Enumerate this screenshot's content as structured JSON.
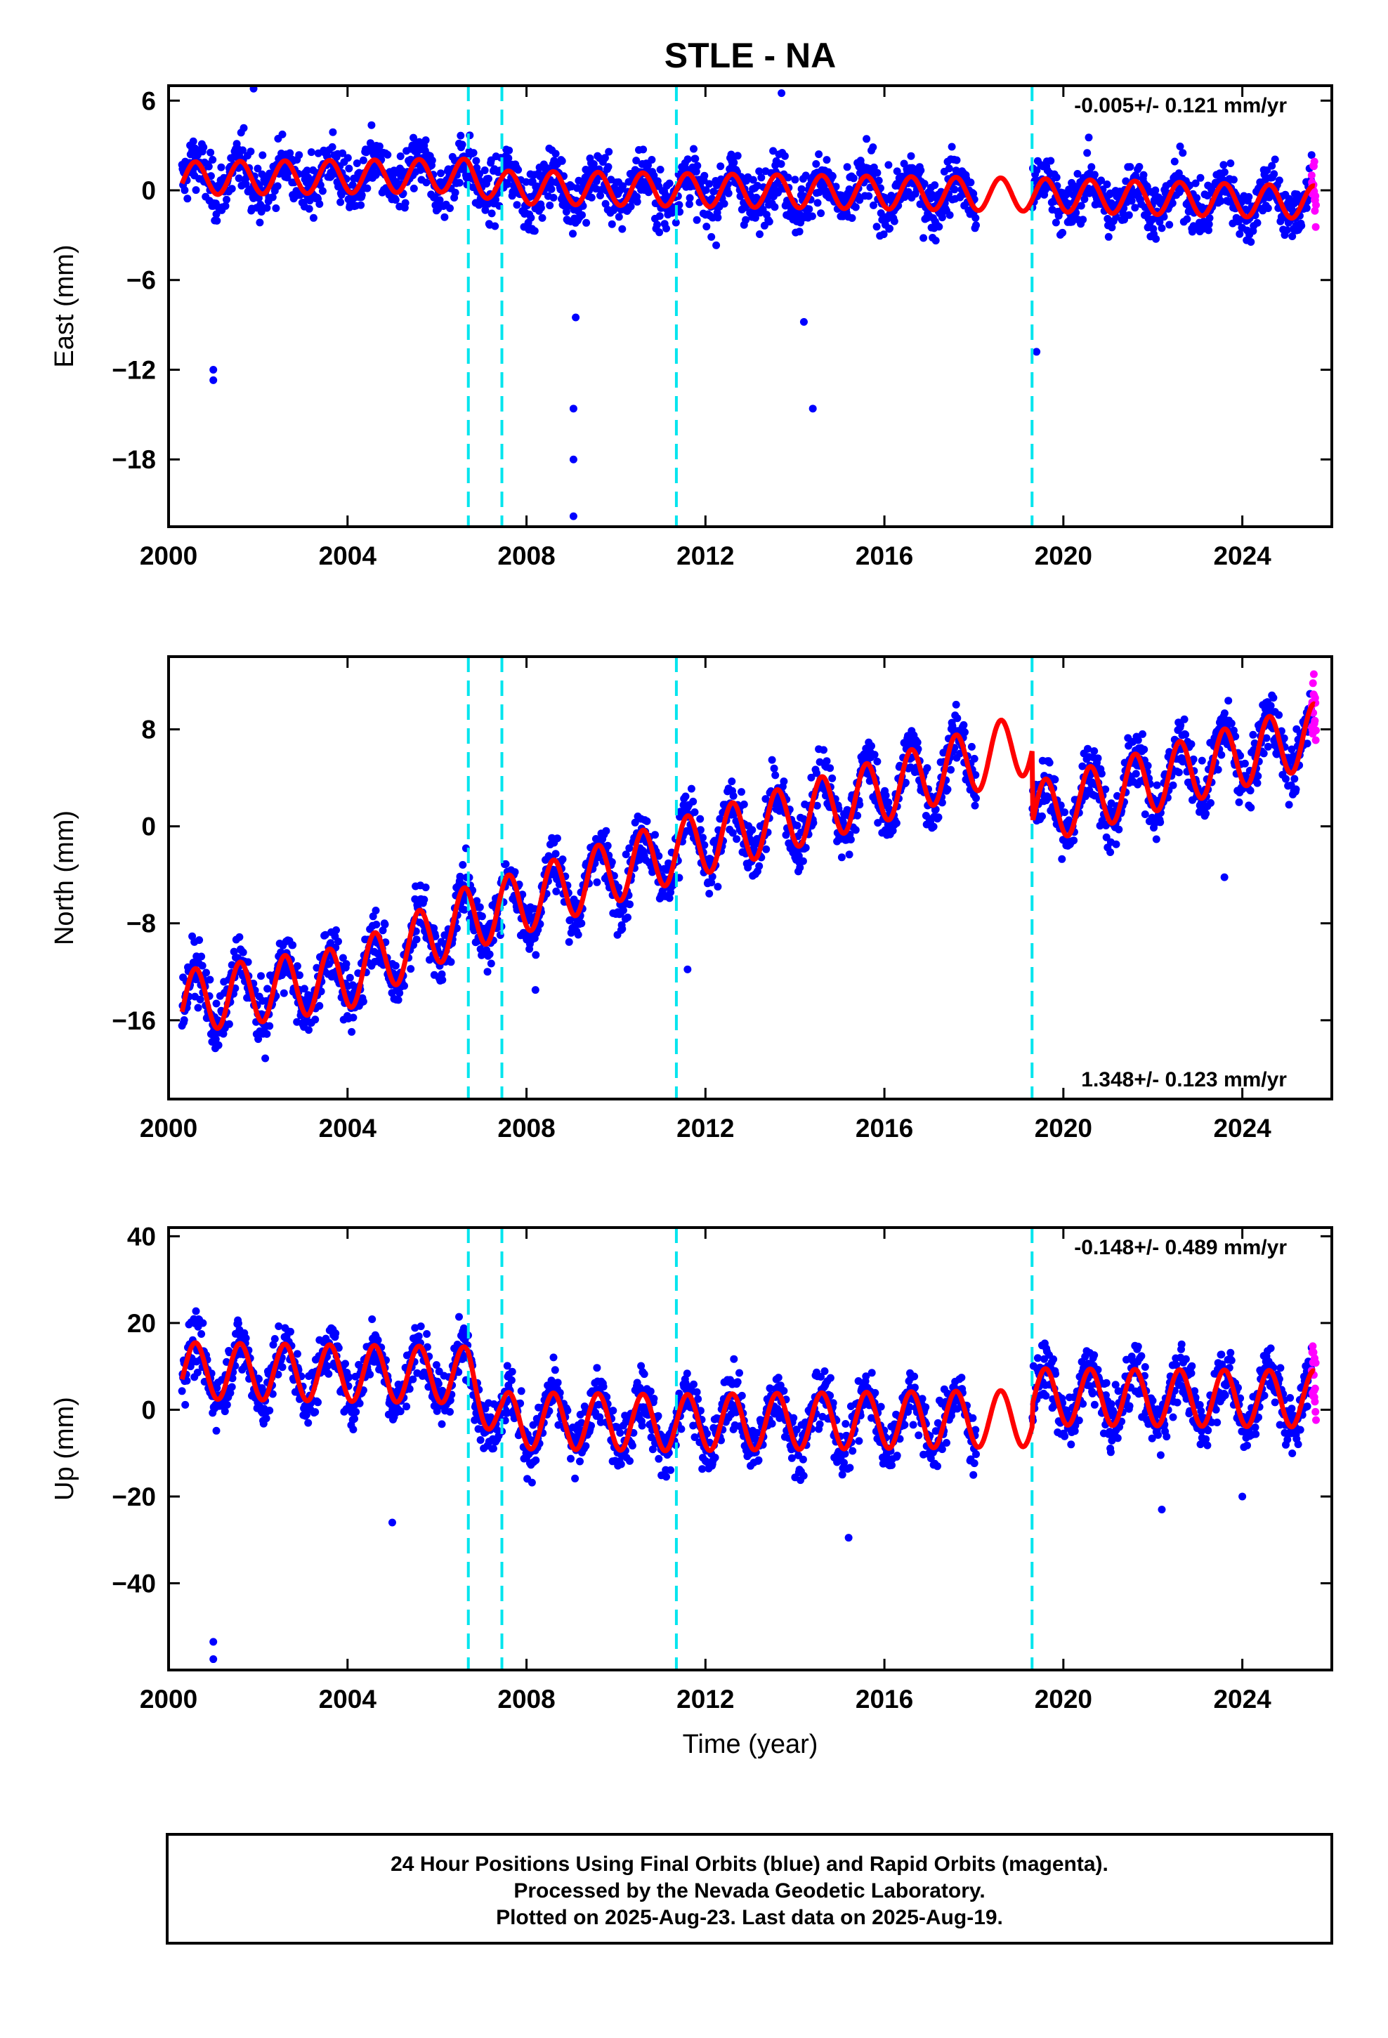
{
  "title": "STLE - NA",
  "colors": {
    "final_orbits": "#0000ff",
    "rapid_orbits": "#ff00ff",
    "model": "#ff0000",
    "equipment_change": "#00e5ee",
    "frame": "#000000"
  },
  "chart_data": [
    {
      "type": "scatter",
      "component": "east",
      "ylabel": "East (mm)",
      "xlabel": "",
      "xlim": [
        2000,
        2026
      ],
      "ylim": [
        -22.5,
        7
      ],
      "yticks": [
        6,
        0,
        -6,
        -12,
        -18
      ],
      "xticks": [
        2000,
        2004,
        2008,
        2012,
        2016,
        2020,
        2024
      ],
      "rate_label": "-0.005+/- 0.121 mm/yr",
      "rate_position": "top-right",
      "offsets": [
        2006.7,
        2007.45,
        2011.35,
        2019.3
      ],
      "series": [
        {
          "role": "final-orbits",
          "x_range": [
            2000.3,
            2025.55
          ],
          "typical": [
            0.2,
            0.4,
            0.6,
            0.8,
            0.3,
            0.1,
            0.5,
            0.3,
            0.0,
            -0.1,
            -0.3,
            -0.5,
            -1.0,
            -0.8
          ]
        },
        {
          "role": "rapid-orbits",
          "x_range": [
            2025.55,
            2025.65
          ]
        }
      ],
      "outliers": [
        [
          2001.0,
          -12.0
        ],
        [
          2001.0,
          -12.7
        ],
        [
          2009.05,
          -14.6
        ],
        [
          2009.05,
          -18.0
        ],
        [
          2009.05,
          -21.8
        ],
        [
          2009.1,
          -8.5
        ],
        [
          2014.2,
          -8.8
        ],
        [
          2014.4,
          -14.6
        ],
        [
          2013.7,
          6.5
        ],
        [
          2019.4,
          -10.8
        ],
        [
          2001.9,
          6.8
        ]
      ],
      "model_fit": "seasonal",
      "model_base": [
        [
          2000.3,
          0.8
        ],
        [
          2006.7,
          1.0
        ],
        [
          2007.45,
          0.2
        ],
        [
          2019.3,
          -0.3
        ],
        [
          2025.6,
          -0.8
        ]
      ],
      "model_amp": 1.1
    },
    {
      "type": "scatter",
      "component": "north",
      "ylabel": "North (mm)",
      "xlabel": "",
      "xlim": [
        2000,
        2026
      ],
      "ylim": [
        -22.5,
        14
      ],
      "yticks": [
        8,
        0,
        -8,
        -16
      ],
      "xticks": [
        2000,
        2004,
        2008,
        2012,
        2016,
        2020,
        2024
      ],
      "rate_label": "1.348+/- 0.123 mm/yr",
      "rate_position": "bottom-right",
      "offsets": [
        2006.7,
        2007.45,
        2011.35,
        2019.3
      ],
      "series": [
        {
          "role": "final-orbits",
          "x_range": [
            2000.3,
            2025.55
          ]
        },
        {
          "role": "rapid-orbits",
          "x_range": [
            2025.55,
            2025.65
          ]
        }
      ],
      "outliers": [
        [
          2011.6,
          -11.8
        ],
        [
          2008.2,
          -13.5
        ],
        [
          2023.6,
          -4.2
        ]
      ],
      "model_fit": "seasonal",
      "model_base": [
        [
          2000.3,
          -14.5
        ],
        [
          2004.0,
          -12.5
        ],
        [
          2006.7,
          -7.5
        ],
        [
          2007.45,
          -6.8
        ],
        [
          2011.35,
          -2.0
        ],
        [
          2016.0,
          3.0
        ],
        [
          2019.3,
          7.0
        ],
        [
          2019.31,
          1.0
        ],
        [
          2025.6,
          7.5
        ]
      ],
      "model_amp": 2.6
    },
    {
      "type": "scatter",
      "component": "up",
      "ylabel": "Up (mm)",
      "xlabel": "Time (year)",
      "xlim": [
        2000,
        2026
      ],
      "ylim": [
        -60,
        42
      ],
      "yticks": [
        40,
        20,
        0,
        -20,
        -40
      ],
      "xticks": [
        2000,
        2004,
        2008,
        2012,
        2016,
        2020,
        2024
      ],
      "rate_label": "-0.148+/- 0.489 mm/yr",
      "rate_position": "top-right",
      "offsets": [
        2006.7,
        2007.45,
        2011.35,
        2019.3
      ],
      "series": [
        {
          "role": "final-orbits",
          "x_range": [
            2000.3,
            2025.55
          ]
        },
        {
          "role": "rapid-orbits",
          "x_range": [
            2025.55,
            2025.65
          ]
        }
      ],
      "outliers": [
        [
          2001.0,
          -53.5
        ],
        [
          2001.0,
          -57.5
        ],
        [
          2005.0,
          -26.0
        ],
        [
          2015.2,
          -29.5
        ],
        [
          2022.2,
          -23.0
        ],
        [
          2024.0,
          -20.0
        ]
      ],
      "model_fit": "seasonal",
      "model_base": [
        [
          2000.3,
          9.0
        ],
        [
          2006.7,
          8.0
        ],
        [
          2007.45,
          -2.5
        ],
        [
          2011.35,
          -3.0
        ],
        [
          2019.3,
          -2.0
        ],
        [
          2019.31,
          3.0
        ],
        [
          2025.6,
          2.5
        ]
      ],
      "model_amp": 6.5
    }
  ],
  "caption": {
    "line1": "24 Hour Positions Using Final Orbits (blue) and Rapid Orbits (magenta).",
    "line2": "Processed by the Nevada Geodetic Laboratory.",
    "line3": "Plotted on 2025-Aug-23. Last data on 2025-Aug-19."
  }
}
